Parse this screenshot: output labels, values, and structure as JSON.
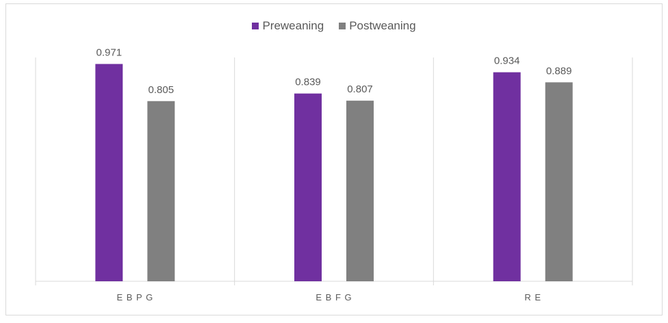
{
  "chart_data": {
    "type": "bar",
    "categories": [
      "E B P G",
      "E B F G",
      "R E"
    ],
    "series": [
      {
        "name": "Preweaning",
        "values": [
          0.971,
          0.839,
          0.934
        ],
        "color": "#7030a0"
      },
      {
        "name": "Postweaning",
        "values": [
          0.805,
          0.807,
          0.889
        ],
        "color": "#808080"
      }
    ],
    "data_labels": [
      [
        "0.971",
        "0.839",
        "0.934"
      ],
      [
        "0.805",
        "0.807",
        "0.889"
      ]
    ],
    "ylim": [
      0,
      1.0
    ],
    "legend_position": "top",
    "grid": false,
    "category_separators": true,
    "colors": {
      "axis": "#d9d9d9",
      "text": "#595959"
    }
  }
}
